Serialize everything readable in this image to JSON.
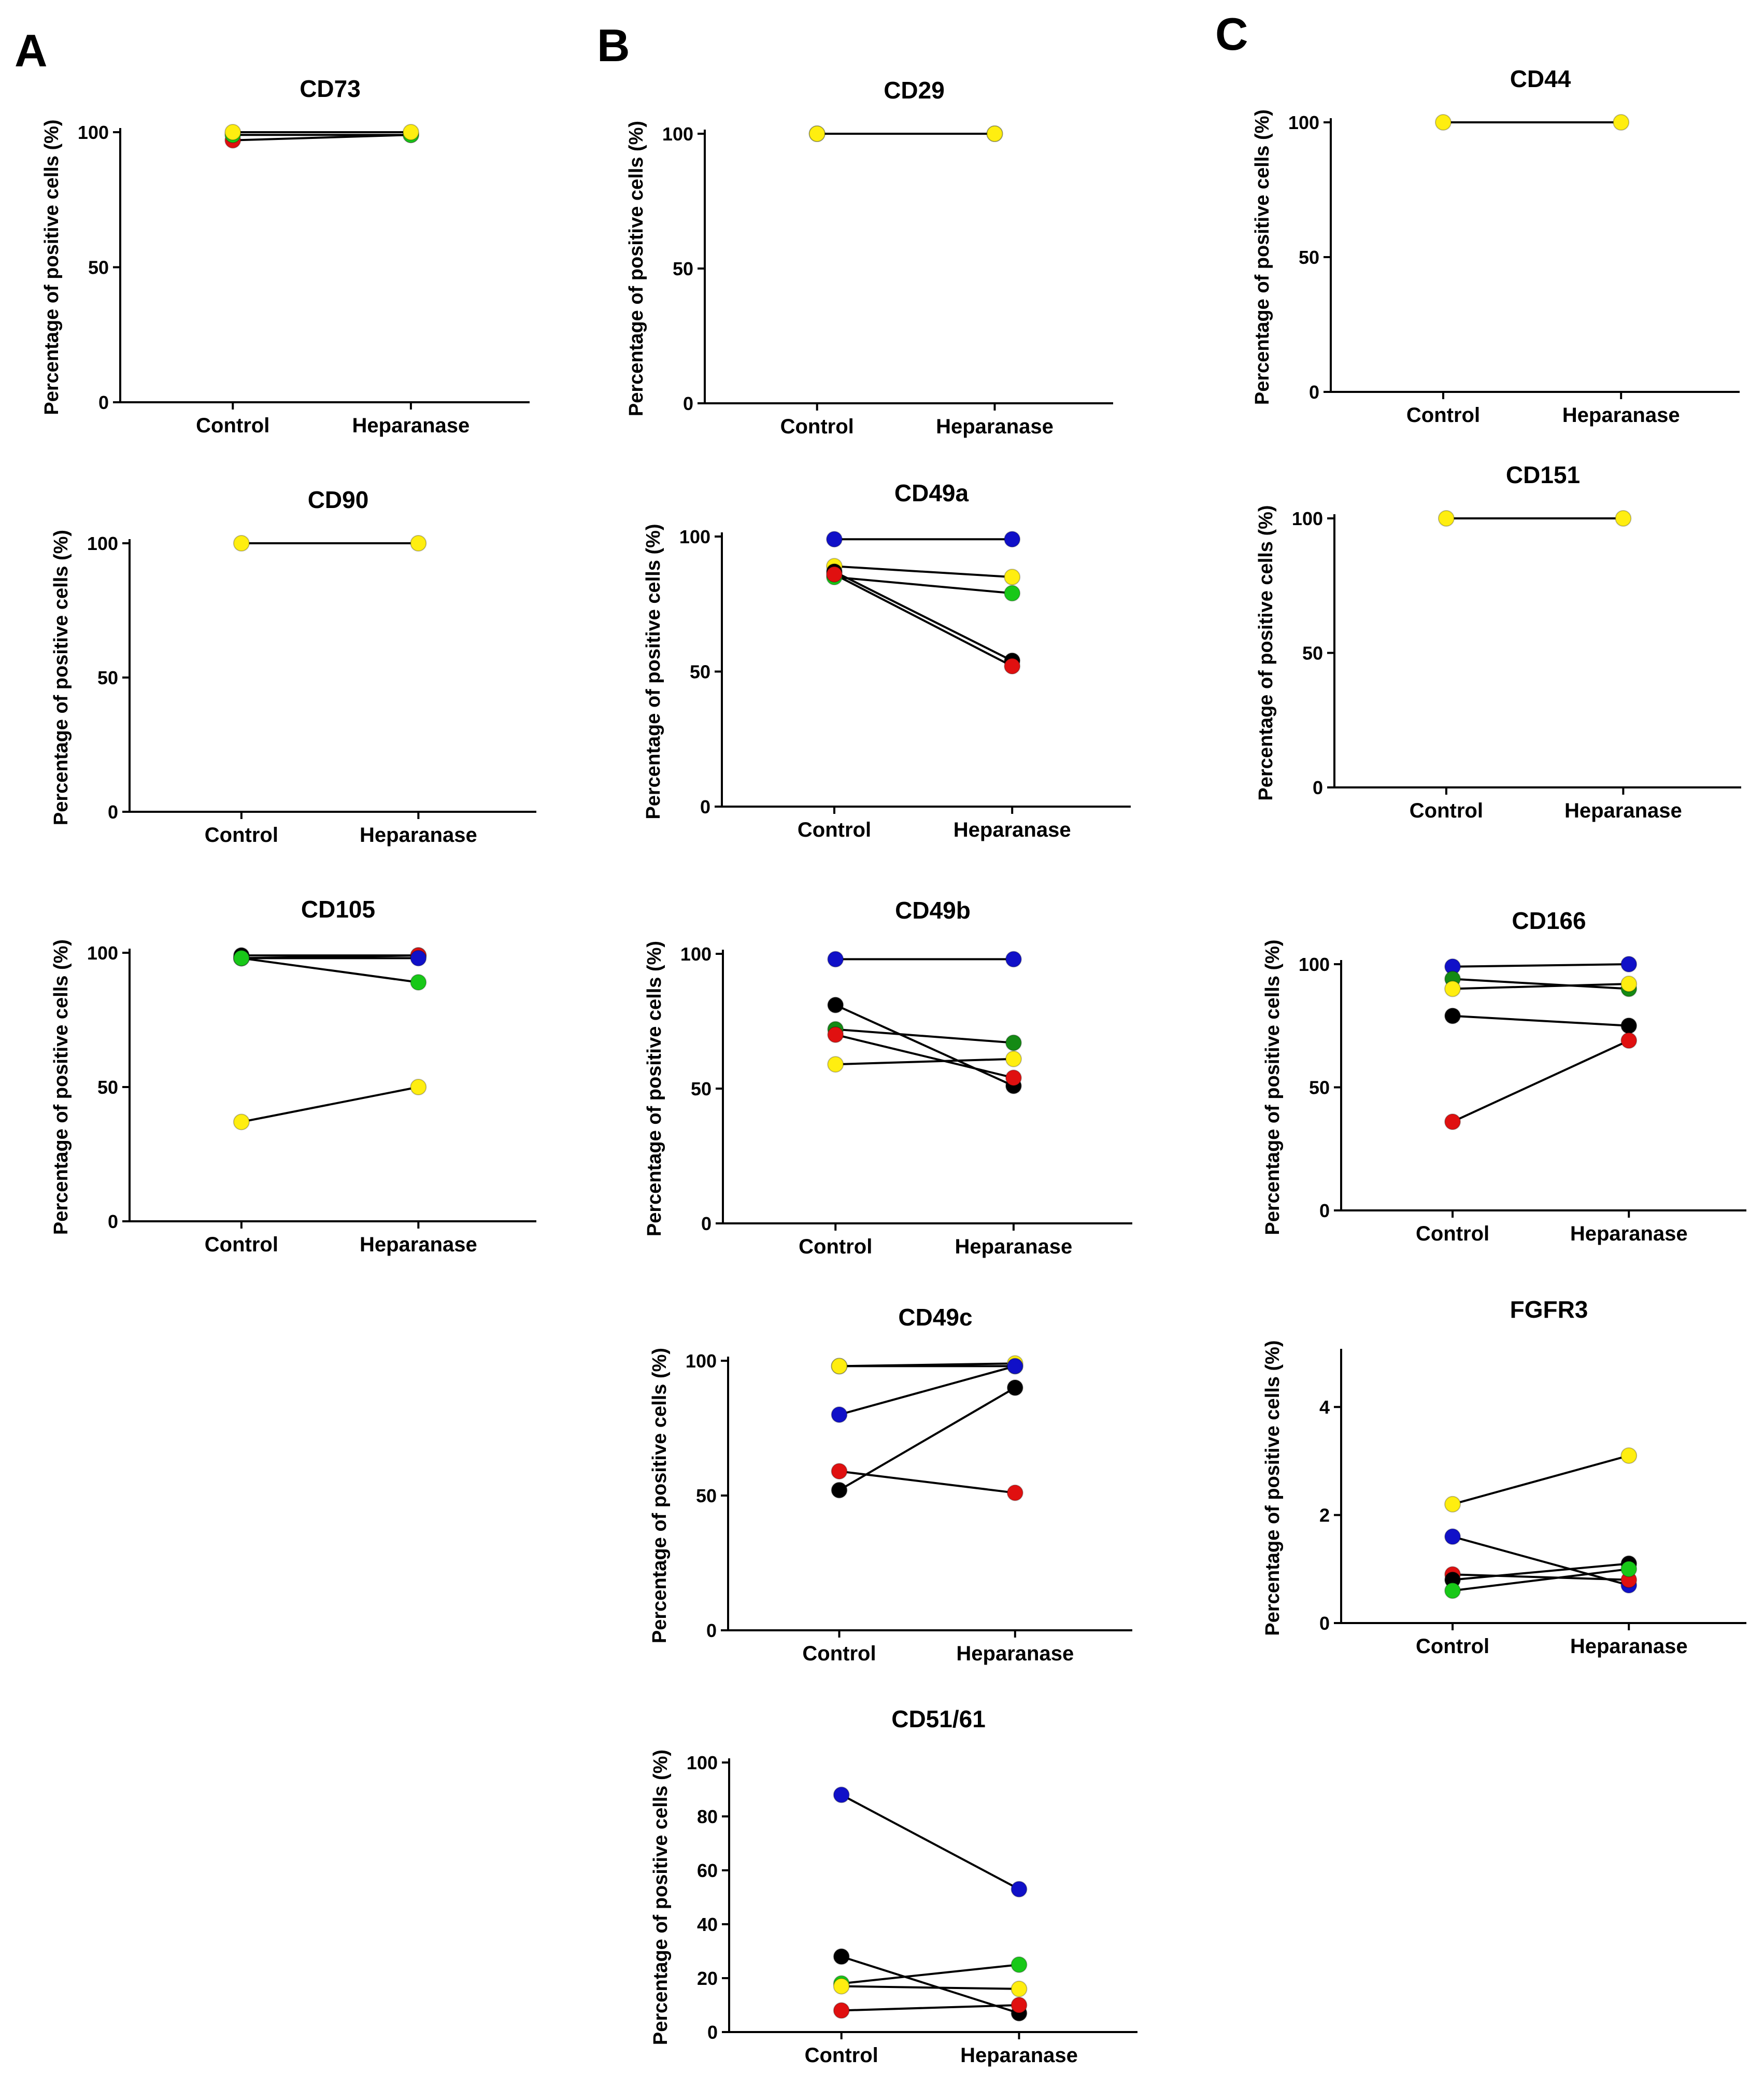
{
  "figure": {
    "panels": [
      {
        "letter": "A"
      },
      {
        "letter": "B"
      },
      {
        "letter": "C"
      }
    ]
  },
  "colors": {
    "blue": "#1010c8",
    "red": "#e01010",
    "green": "#18c818",
    "yellow": "#ffee10",
    "black": "#000000",
    "darkgreen": "#148a14"
  },
  "chart_data": [
    {
      "id": "cd73",
      "panel": "A",
      "type": "line",
      "title": "CD73",
      "ylabel": "Percentage of positive cells (%)",
      "categories": [
        "Control",
        "Heparanase"
      ],
      "ylim": [
        0,
        100
      ],
      "yticks": [
        0,
        50,
        100
      ],
      "series": [
        {
          "name": "red",
          "color": "red",
          "values": [
            97,
            99
          ]
        },
        {
          "name": "green",
          "color": "green",
          "values": [
            99,
            99
          ]
        },
        {
          "name": "yellow",
          "color": "yellow",
          "values": [
            100,
            100
          ]
        }
      ]
    },
    {
      "id": "cd90",
      "panel": "A",
      "type": "line",
      "title": "CD90",
      "ylabel": "Percentage of positive cells (%)",
      "categories": [
        "Control",
        "Heparanase"
      ],
      "ylim": [
        0,
        100
      ],
      "yticks": [
        0,
        50,
        100
      ],
      "series": [
        {
          "name": "yellow",
          "color": "yellow",
          "values": [
            100,
            100
          ]
        }
      ]
    },
    {
      "id": "cd105",
      "panel": "A",
      "type": "line",
      "title": "CD105",
      "ylabel": "Percentage of positive cells (%)",
      "categories": [
        "Control",
        "Heparanase"
      ],
      "ylim": [
        0,
        100
      ],
      "yticks": [
        0,
        50,
        100
      ],
      "series": [
        {
          "name": "black",
          "color": "black",
          "values": [
            99,
            99
          ]
        },
        {
          "name": "red",
          "color": "red",
          "values": [
            98,
            99
          ]
        },
        {
          "name": "blue",
          "color": "blue",
          "values": [
            98,
            98
          ]
        },
        {
          "name": "green",
          "color": "green",
          "values": [
            98,
            89
          ]
        },
        {
          "name": "yellow",
          "color": "yellow",
          "values": [
            37,
            50
          ]
        }
      ]
    },
    {
      "id": "cd29",
      "panel": "B",
      "type": "line",
      "title": "CD29",
      "ylabel": "Percentage of positive cells (%)",
      "categories": [
        "Control",
        "Heparanase"
      ],
      "ylim": [
        0,
        100
      ],
      "yticks": [
        0,
        50,
        100
      ],
      "series": [
        {
          "name": "green",
          "color": "green",
          "values": [
            100,
            100
          ]
        },
        {
          "name": "yellow",
          "color": "yellow",
          "values": [
            100,
            100
          ]
        }
      ]
    },
    {
      "id": "cd49a",
      "panel": "B",
      "type": "line",
      "title": "CD49a",
      "ylabel": "Percentage of positive cells (%)",
      "categories": [
        "Control",
        "Heparanase"
      ],
      "ylim": [
        0,
        100
      ],
      "yticks": [
        0,
        50,
        100
      ],
      "series": [
        {
          "name": "blue",
          "color": "blue",
          "values": [
            99,
            99
          ]
        },
        {
          "name": "yellow",
          "color": "yellow",
          "values": [
            89,
            85
          ]
        },
        {
          "name": "green",
          "color": "green",
          "values": [
            85,
            79
          ]
        },
        {
          "name": "black",
          "color": "black",
          "values": [
            87,
            54
          ]
        },
        {
          "name": "red",
          "color": "red",
          "values": [
            86,
            52
          ]
        }
      ]
    },
    {
      "id": "cd49b",
      "panel": "B",
      "type": "line",
      "title": "CD49b",
      "ylabel": "Percentage of positive cells (%)",
      "categories": [
        "Control",
        "Heparanase"
      ],
      "ylim": [
        0,
        100
      ],
      "yticks": [
        0,
        50,
        100
      ],
      "series": [
        {
          "name": "blue",
          "color": "blue",
          "values": [
            98,
            98
          ]
        },
        {
          "name": "black",
          "color": "black",
          "values": [
            81,
            51
          ]
        },
        {
          "name": "green",
          "color": "darkgreen",
          "values": [
            72,
            67
          ]
        },
        {
          "name": "red",
          "color": "red",
          "values": [
            70,
            54
          ]
        },
        {
          "name": "yellow",
          "color": "yellow",
          "values": [
            59,
            61
          ]
        }
      ]
    },
    {
      "id": "cd49c",
      "panel": "B",
      "type": "line",
      "title": "CD49c",
      "ylabel": "Percentage of positive cells (%)",
      "categories": [
        "Control",
        "Heparanase"
      ],
      "ylim": [
        0,
        100
      ],
      "yticks": [
        0,
        50,
        100
      ],
      "series": [
        {
          "name": "green",
          "color": "green",
          "values": [
            98,
            98
          ]
        },
        {
          "name": "yellow",
          "color": "yellow",
          "values": [
            98,
            99
          ]
        },
        {
          "name": "blue",
          "color": "blue",
          "values": [
            80,
            98
          ]
        },
        {
          "name": "red",
          "color": "red",
          "values": [
            59,
            51
          ]
        },
        {
          "name": "black",
          "color": "black",
          "values": [
            52,
            90
          ]
        }
      ]
    },
    {
      "id": "cd5161",
      "panel": "B",
      "type": "line",
      "title": "CD51/61",
      "ylabel": "Percentage of positive cells (%)",
      "categories": [
        "Control",
        "Heparanase"
      ],
      "ylim": [
        0,
        100
      ],
      "yticks": [
        0,
        20,
        40,
        60,
        80,
        100
      ],
      "series": [
        {
          "name": "blue",
          "color": "blue",
          "values": [
            88,
            53
          ]
        },
        {
          "name": "black",
          "color": "black",
          "values": [
            28,
            7
          ]
        },
        {
          "name": "green",
          "color": "green",
          "values": [
            18,
            25
          ]
        },
        {
          "name": "yellow",
          "color": "yellow",
          "values": [
            17,
            16
          ]
        },
        {
          "name": "red",
          "color": "red",
          "values": [
            8,
            10
          ]
        }
      ]
    },
    {
      "id": "cd44",
      "panel": "C",
      "type": "line",
      "title": "CD44",
      "ylabel": "Percentage of positive cells (%)",
      "categories": [
        "Control",
        "Heparanase"
      ],
      "ylim": [
        0,
        100
      ],
      "yticks": [
        0,
        50,
        100
      ],
      "series": [
        {
          "name": "yellow",
          "color": "yellow",
          "values": [
            100,
            100
          ]
        }
      ]
    },
    {
      "id": "cd151",
      "panel": "C",
      "type": "line",
      "title": "CD151",
      "ylabel": "Percentage of positive cells (%)",
      "categories": [
        "Control",
        "Heparanase"
      ],
      "ylim": [
        0,
        100
      ],
      "yticks": [
        0,
        50,
        100
      ],
      "series": [
        {
          "name": "yellow",
          "color": "yellow",
          "values": [
            100,
            100
          ]
        }
      ]
    },
    {
      "id": "cd166",
      "panel": "C",
      "type": "line",
      "title": "CD166",
      "ylabel": "Percentage of positive cells (%)",
      "categories": [
        "Control",
        "Heparanase"
      ],
      "ylim": [
        0,
        100
      ],
      "yticks": [
        0,
        50,
        100
      ],
      "series": [
        {
          "name": "blue",
          "color": "blue",
          "values": [
            99,
            100
          ]
        },
        {
          "name": "green",
          "color": "darkgreen",
          "values": [
            94,
            90
          ]
        },
        {
          "name": "yellow",
          "color": "yellow",
          "values": [
            90,
            92
          ]
        },
        {
          "name": "black",
          "color": "black",
          "values": [
            79,
            75
          ]
        },
        {
          "name": "red",
          "color": "red",
          "values": [
            36,
            69
          ]
        }
      ]
    },
    {
      "id": "fgfr3",
      "panel": "C",
      "type": "line",
      "title": "FGFR3",
      "ylabel": "Percentage of positive cells (%)",
      "categories": [
        "Control",
        "Heparanase"
      ],
      "ylim": [
        0,
        5
      ],
      "yticks": [
        0,
        2,
        4
      ],
      "series": [
        {
          "name": "yellow",
          "color": "yellow",
          "values": [
            2.2,
            3.1
          ]
        },
        {
          "name": "blue",
          "color": "blue",
          "values": [
            1.6,
            0.7
          ]
        },
        {
          "name": "red",
          "color": "red",
          "values": [
            0.9,
            0.8
          ]
        },
        {
          "name": "black",
          "color": "black",
          "values": [
            0.8,
            1.1
          ]
        },
        {
          "name": "green",
          "color": "green",
          "values": [
            0.6,
            1.0
          ]
        }
      ]
    }
  ]
}
